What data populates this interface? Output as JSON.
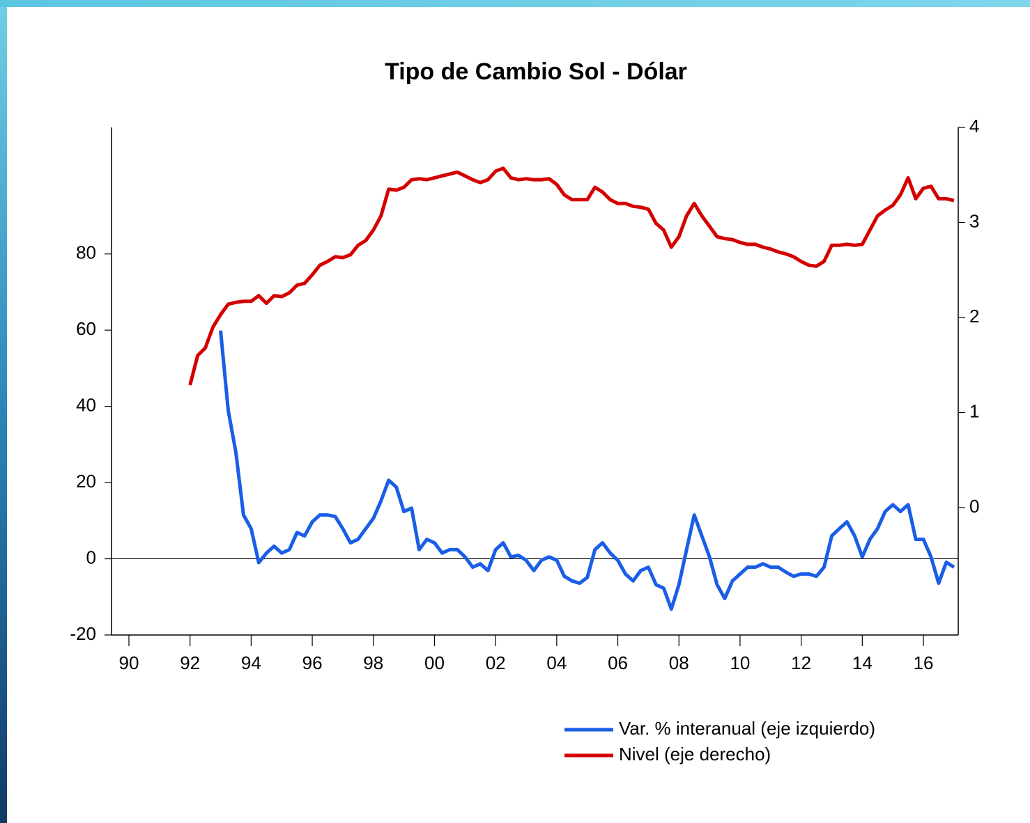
{
  "chart_data": {
    "type": "line",
    "title": "Tipo de Cambio Sol - Dólar",
    "x": [
      1992,
      1992.25,
      1992.5,
      1992.75,
      1993,
      1993.25,
      1993.5,
      1993.75,
      1994,
      1994.25,
      1994.5,
      1994.75,
      1995,
      1995.25,
      1995.5,
      1995.75,
      1996,
      1996.25,
      1996.5,
      1996.75,
      1997,
      1997.25,
      1997.5,
      1997.75,
      1998,
      1998.25,
      1998.5,
      1998.75,
      1999,
      1999.25,
      1999.5,
      1999.75,
      2000,
      2000.25,
      2000.5,
      2000.75,
      2001,
      2001.25,
      2001.5,
      2001.75,
      2002,
      2002.25,
      2002.5,
      2002.75,
      2003,
      2003.25,
      2003.5,
      2003.75,
      2004,
      2004.25,
      2004.5,
      2004.75,
      2005,
      2005.25,
      2005.5,
      2005.75,
      2006,
      2006.25,
      2006.5,
      2006.75,
      2007,
      2007.25,
      2007.5,
      2007.75,
      2008,
      2008.25,
      2008.5,
      2008.75,
      2009,
      2009.25,
      2009.5,
      2009.75,
      2010,
      2010.25,
      2010.5,
      2010.75,
      2011,
      2011.25,
      2011.5,
      2011.75,
      2012,
      2012.25,
      2012.5,
      2012.75,
      2013,
      2013.25,
      2013.5,
      2013.75,
      2014,
      2014.25,
      2014.5,
      2014.75,
      2015,
      2015.25,
      2015.5,
      2015.75,
      2016,
      2016.25,
      2016.5,
      2016.75,
      2017
    ],
    "series": [
      {
        "name": "Var. % interanual (eje izquierdo)",
        "color": "#1a5ee6",
        "axis": "y",
        "values": [
          null,
          null,
          null,
          null,
          59.9,
          38.9,
          27.9,
          11.5,
          7.9,
          -1.0,
          1.5,
          3.3,
          1.5,
          2.4,
          6.9,
          6.0,
          9.7,
          11.5,
          11.5,
          11.1,
          7.9,
          4.2,
          5.1,
          7.9,
          10.6,
          15.2,
          20.6,
          18.8,
          12.4,
          13.3,
          2.4,
          5.1,
          4.2,
          1.5,
          2.4,
          2.4,
          0.5,
          -2.2,
          -1.3,
          -3.1,
          2.4,
          4.2,
          0.5,
          0.9,
          -0.4,
          -3.1,
          -0.4,
          0.5,
          -0.4,
          -4.6,
          -5.8,
          -6.4,
          -4.9,
          2.4,
          4.2,
          1.5,
          -0.4,
          -4.0,
          -5.8,
          -3.1,
          -2.2,
          -6.8,
          -7.7,
          -13.2,
          -6.8,
          2.4,
          11.5,
          6.0,
          0.5,
          -6.8,
          -10.4,
          -5.8,
          -4.0,
          -2.2,
          -2.2,
          -1.3,
          -2.2,
          -2.2,
          -3.5,
          -4.6,
          -4.0,
          -4.0,
          -4.6,
          -2.2,
          6.0,
          7.9,
          9.7,
          6.0,
          0.5,
          5.1,
          7.9,
          12.4,
          14.2,
          12.4,
          14.2,
          5.1,
          5.1,
          0.5,
          -6.4,
          -0.9,
          -2.2
        ]
      },
      {
        "name": "Nivel (eje derecho)",
        "color": "#d40000",
        "axis": "y2",
        "values": [
          1.29,
          1.6,
          1.68,
          1.9,
          2.03,
          2.14,
          2.16,
          2.17,
          2.17,
          2.23,
          2.15,
          2.23,
          2.22,
          2.26,
          2.34,
          2.36,
          2.45,
          2.55,
          2.59,
          2.64,
          2.63,
          2.66,
          2.76,
          2.81,
          2.92,
          3.07,
          3.35,
          3.34,
          3.37,
          3.45,
          3.46,
          3.45,
          3.47,
          3.49,
          3.51,
          3.53,
          3.49,
          3.45,
          3.42,
          3.45,
          3.54,
          3.57,
          3.47,
          3.45,
          3.46,
          3.45,
          3.45,
          3.46,
          3.4,
          3.29,
          3.24,
          3.24,
          3.24,
          3.37,
          3.32,
          3.24,
          3.2,
          3.2,
          3.17,
          3.16,
          3.14,
          2.99,
          2.92,
          2.74,
          2.85,
          3.07,
          3.2,
          3.07,
          2.96,
          2.85,
          2.83,
          2.82,
          2.79,
          2.77,
          2.77,
          2.74,
          2.72,
          2.69,
          2.67,
          2.64,
          2.59,
          2.55,
          2.54,
          2.59,
          2.76,
          2.76,
          2.77,
          2.76,
          2.77,
          2.92,
          3.07,
          3.13,
          3.18,
          3.29,
          3.47,
          3.25,
          3.36,
          3.38,
          3.25,
          3.25,
          3.23
        ]
      }
    ],
    "xlim": [
      1989.43,
      2017.14
    ],
    "xticks": [
      {
        "value": 1990,
        "label": "90"
      },
      {
        "value": 1992,
        "label": "92"
      },
      {
        "value": 1994,
        "label": "94"
      },
      {
        "value": 1996,
        "label": "96"
      },
      {
        "value": 1998,
        "label": "98"
      },
      {
        "value": 2000,
        "label": "00"
      },
      {
        "value": 2002,
        "label": "02"
      },
      {
        "value": 2004,
        "label": "04"
      },
      {
        "value": 2006,
        "label": "06"
      },
      {
        "value": 2008,
        "label": "08"
      },
      {
        "value": 2010,
        "label": "10"
      },
      {
        "value": 2012,
        "label": "12"
      },
      {
        "value": 2014,
        "label": "14"
      },
      {
        "value": 2016,
        "label": "16"
      }
    ],
    "ylim": [
      -20,
      113.2
    ],
    "yticks": [
      -20,
      0,
      20,
      40,
      60,
      80
    ],
    "y2lim": [
      -1.34,
      4
    ],
    "y2ticks": [
      0,
      1,
      2,
      3,
      4
    ],
    "reference_line": 0,
    "grid": false,
    "legend": "bottom-right"
  }
}
